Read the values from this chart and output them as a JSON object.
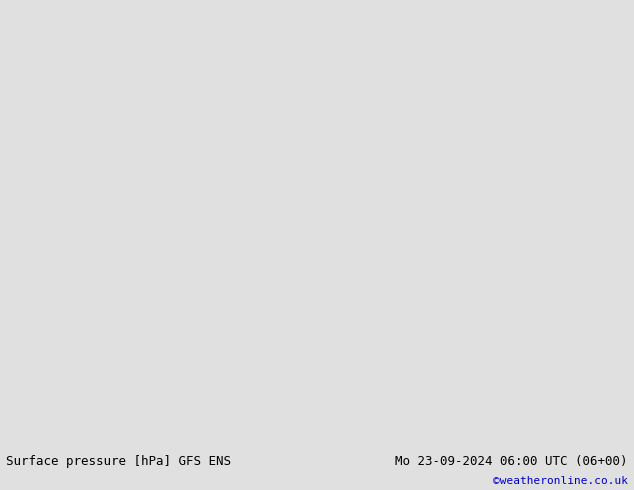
{
  "title_left": "Surface pressure [hPa] GFS ENS",
  "title_right": "Mo 23-09-2024 06:00 UTC (06+00)",
  "credit": "©weatheronline.co.uk",
  "ocean_color": "#c8d8e8",
  "land_color": "#c8e8a0",
  "land_edge_color": "#888888",
  "contour_color_black": "#000000",
  "contour_color_blue": "#0000cc",
  "contour_color_red": "#cc0000",
  "bottom_bar_color": "#e0e0e0",
  "font_size_title": 9,
  "font_size_credit": 8,
  "map_lon_min": 90,
  "map_lon_max": 185,
  "map_lat_min": -57,
  "map_lat_max": 12
}
